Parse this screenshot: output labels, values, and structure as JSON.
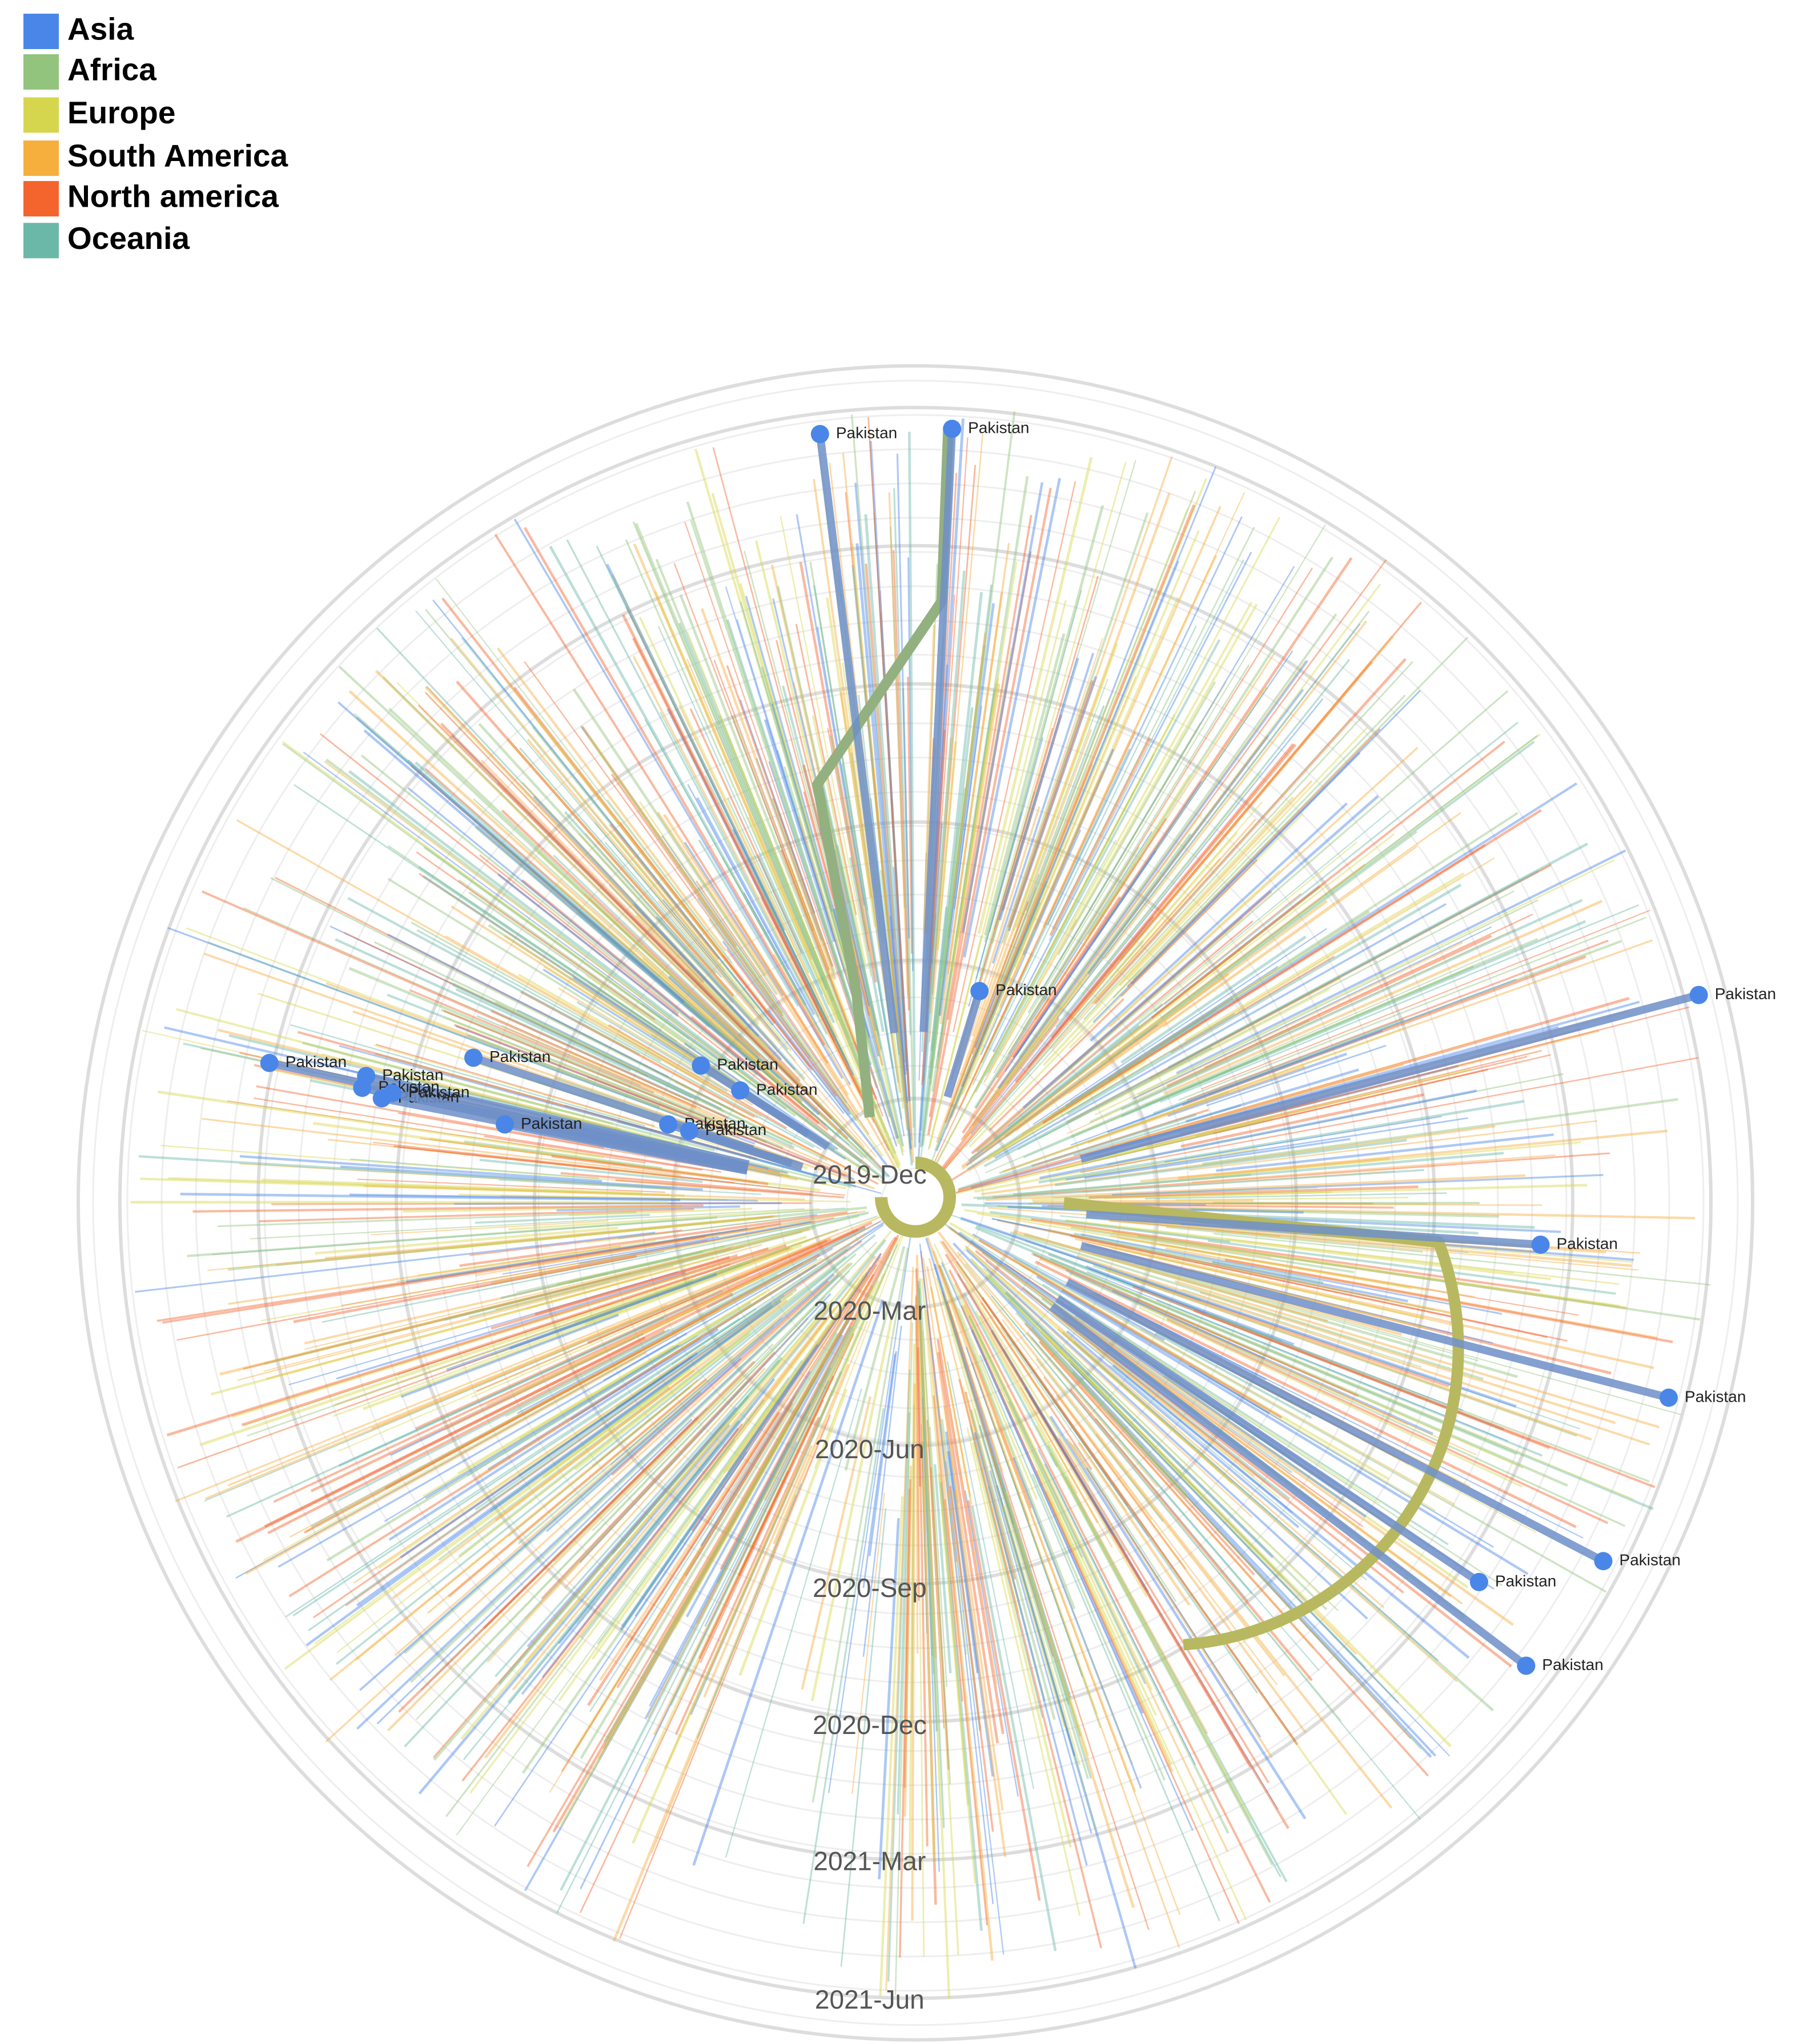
{
  "legend": {
    "items": [
      {
        "name": "Asia",
        "color": "#4a86e8"
      },
      {
        "name": "Africa",
        "color": "#93c47d"
      },
      {
        "name": "Europe",
        "color": "#d6d64e"
      },
      {
        "name": "South America",
        "color": "#f6ae3d"
      },
      {
        "name": "North america",
        "color": "#f4642d"
      },
      {
        "name": "Oceania",
        "color": "#6bb8a8"
      }
    ]
  },
  "rings": [
    "2019-Dec",
    "2020-Mar",
    "2020-Jun",
    "2020-Sep",
    "2020-Dec",
    "2021-Mar",
    "2021-Jun"
  ],
  "tips": [
    "Pakistan",
    "Pakistan",
    "Pakistan",
    "Pakistan",
    "Pakistan",
    "Pakistan",
    "Pakistan",
    "Pakistan",
    "Pakistan",
    "Pakistan",
    "Pakistan",
    "Pakistan",
    "Pakistan",
    "Pakistan",
    "Pakistan",
    "Pakistan",
    "Pakistan",
    "Pakistan",
    "Pakistan",
    "Pakistan"
  ]
}
